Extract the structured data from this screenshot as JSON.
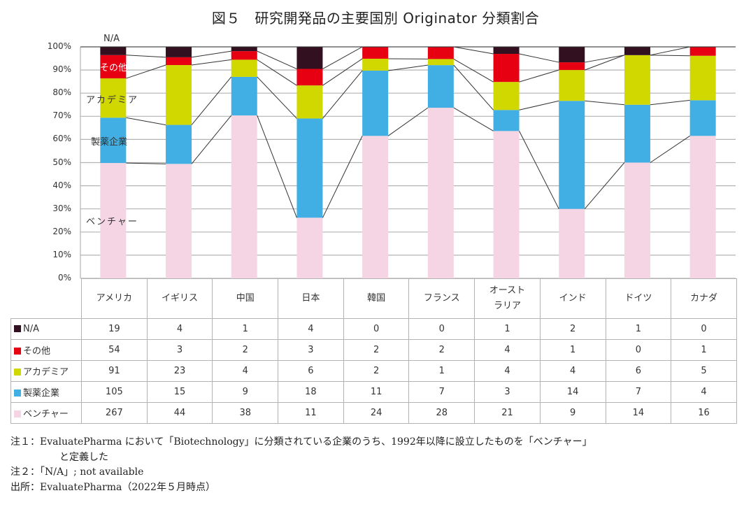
{
  "title": "図５　研究開発品の主要国別 Originator 分類割合",
  "y_axis_ticks": [
    "100%",
    "90%",
    "80%",
    "70%",
    "60%",
    "50%",
    "40%",
    "30%",
    "20%",
    "10%",
    "0%"
  ],
  "series_labels_on_chart": {
    "na": "N/A",
    "other": "その他",
    "academia": "アカデミア",
    "pharma": "製薬企業",
    "venture": "ベンチャー"
  },
  "colors": {
    "na": "#33101F",
    "other": "#E60012",
    "academia": "#D0D800",
    "pharma": "#41AFE3",
    "venture": "#F5D5E3",
    "grid": "#b3b3b3",
    "connector": "#333333"
  },
  "table": {
    "countries": [
      "アメリカ",
      "イギリス",
      "中国",
      "日本",
      "韓国",
      "フランス",
      "オースト\nラリア",
      "インド",
      "ドイツ",
      "カナダ"
    ],
    "rows": [
      {
        "key": "na",
        "label": "N/A",
        "values": [
          19,
          4,
          1,
          4,
          0,
          0,
          1,
          2,
          1,
          0
        ]
      },
      {
        "key": "other",
        "label": "その他",
        "values": [
          54,
          3,
          2,
          3,
          2,
          2,
          4,
          1,
          0,
          1
        ]
      },
      {
        "key": "academia",
        "label": "アカデミア",
        "values": [
          91,
          23,
          4,
          6,
          2,
          1,
          4,
          4,
          6,
          5
        ]
      },
      {
        "key": "pharma",
        "label": "製薬企業",
        "values": [
          105,
          15,
          9,
          18,
          11,
          7,
          3,
          14,
          7,
          4
        ]
      },
      {
        "key": "venture",
        "label": "ベンチャー",
        "values": [
          267,
          44,
          38,
          11,
          24,
          28,
          21,
          9,
          14,
          16
        ]
      }
    ]
  },
  "notes": [
    "注１：EvaluatePharma において「Biotechnology」に分類されている企業のうち、1992年以降に設立したものを「ベンチャー」",
    "と定義した",
    "注２：「N/A」; not available",
    "出所：EvaluatePharma（2022年５月時点）"
  ],
  "chart_data": {
    "type": "bar",
    "stacked": true,
    "normalized_percent": true,
    "title": "図５　研究開発品の主要国別 Originator 分類割合",
    "xlabel": "",
    "ylabel": "",
    "ylim": [
      0,
      100
    ],
    "y_ticks": [
      "0%",
      "10%",
      "20%",
      "30%",
      "40%",
      "50%",
      "60%",
      "70%",
      "80%",
      "90%",
      "100%"
    ],
    "grid": true,
    "categories": [
      "アメリカ",
      "イギリス",
      "中国",
      "日本",
      "韓国",
      "フランス",
      "オーストラリア",
      "インド",
      "ドイツ",
      "カナダ"
    ],
    "series": [
      {
        "name": "ベンチャー",
        "color": "#F5D5E3",
        "values": [
          267,
          44,
          38,
          11,
          24,
          28,
          21,
          9,
          14,
          16
        ]
      },
      {
        "name": "製薬企業",
        "color": "#41AFE3",
        "values": [
          105,
          15,
          9,
          18,
          11,
          7,
          3,
          14,
          7,
          4
        ]
      },
      {
        "name": "アカデミア",
        "color": "#D0D800",
        "values": [
          91,
          23,
          4,
          6,
          2,
          1,
          4,
          4,
          6,
          5
        ]
      },
      {
        "name": "その他",
        "color": "#E60012",
        "values": [
          54,
          3,
          2,
          3,
          2,
          2,
          4,
          1,
          0,
          1
        ]
      },
      {
        "name": "N/A",
        "color": "#33101F",
        "values": [
          19,
          4,
          1,
          4,
          0,
          0,
          1,
          2,
          1,
          0
        ]
      }
    ],
    "legend": "table below chart with colored squares",
    "annotations": [
      "N/A",
      "その他",
      "アカデミア",
      "製薬企業",
      "ベンチャー"
    ],
    "series_lines": "connector lines join segment boundaries between adjacent bars"
  }
}
